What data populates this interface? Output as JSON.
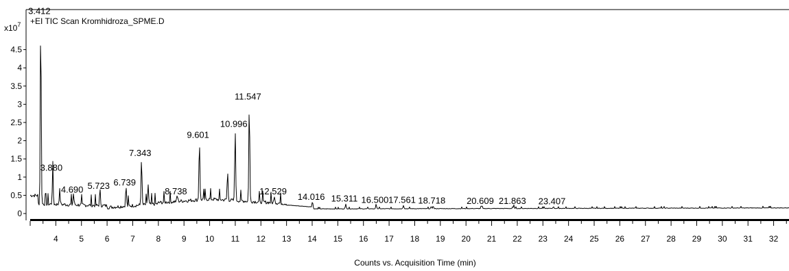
{
  "chart_data": {
    "type": "line",
    "title": "+EI TIC Scan Kromhidroza_SPME.D",
    "xlabel": "Counts vs. Acquisition Time (min)",
    "ylabel": "",
    "y_scale_label": "x10",
    "y_scale_exponent": "7",
    "xlim": [
      3.0,
      32.6
    ],
    "ylim": [
      -0.15,
      5.6
    ],
    "x_ticks": [
      "4",
      "5",
      "6",
      "7",
      "8",
      "9",
      "10",
      "11",
      "12",
      "13",
      "14",
      "15",
      "16",
      "17",
      "18",
      "19",
      "20",
      "21",
      "22",
      "23",
      "24",
      "25",
      "26",
      "27",
      "28",
      "29",
      "30",
      "31",
      "32"
    ],
    "y_ticks": [
      "0",
      "0.5",
      "1",
      "1.5",
      "2",
      "2.5",
      "3",
      "3.5",
      "4",
      "4.5"
    ],
    "series": [
      {
        "color": "#000000",
        "peaks": [
          {
            "rt": 3.412,
            "label": "3.412",
            "height": 5.4
          },
          {
            "rt": 3.88,
            "label": "3.880",
            "height": 1.1
          },
          {
            "rt": 4.15,
            "height": 0.6
          },
          {
            "rt": 4.69,
            "label": "4.690",
            "height": 0.5
          },
          {
            "rt": 5.723,
            "label": "5.723",
            "height": 0.6
          },
          {
            "rt": 6.739,
            "label": "6.739",
            "height": 0.7
          },
          {
            "rt": 7.343,
            "label": "7.343",
            "height": 1.5
          },
          {
            "rt": 7.6,
            "height": 0.75
          },
          {
            "rt": 8.738,
            "label": "8.738",
            "height": 0.45
          },
          {
            "rt": 9.601,
            "label": "9.601",
            "height": 2.0
          },
          {
            "rt": 10.7,
            "height": 1.1
          },
          {
            "rt": 10.996,
            "label": "10.996",
            "height": 2.3
          },
          {
            "rt": 11.547,
            "label": "11.547",
            "height": 3.05
          },
          {
            "rt": 12.529,
            "label": "12.529",
            "height": 0.45
          },
          {
            "rt": 14.016,
            "label": "14.016",
            "height": 0.3
          },
          {
            "rt": 15.311,
            "label": "15.311",
            "height": 0.25
          },
          {
            "rt": 16.5,
            "label": "16.500",
            "height": 0.22
          },
          {
            "rt": 17.561,
            "label": "17.561",
            "height": 0.22
          },
          {
            "rt": 18.718,
            "label": "18.718",
            "height": 0.2
          },
          {
            "rt": 20.609,
            "label": "20.609",
            "height": 0.19
          },
          {
            "rt": 21.863,
            "label": "21.863",
            "height": 0.19
          },
          {
            "rt": 23.407,
            "label": "23.407",
            "height": 0.18
          }
        ]
      }
    ]
  }
}
